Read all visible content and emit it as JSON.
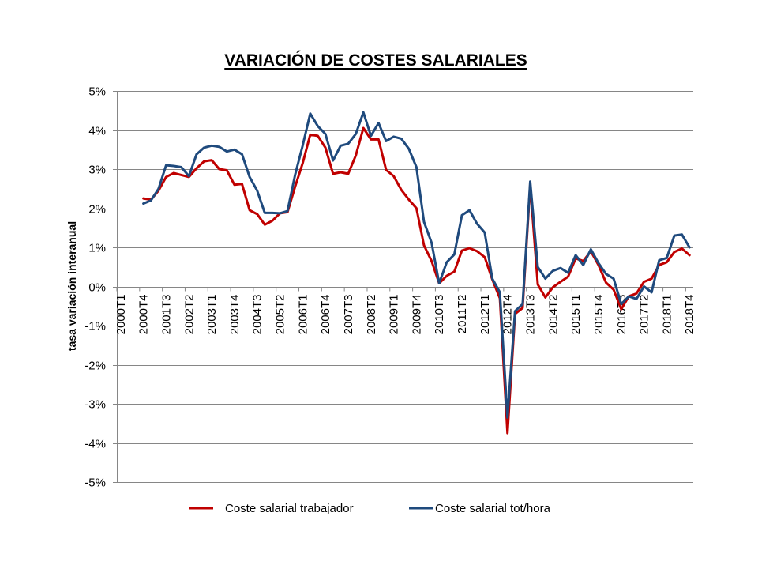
{
  "chart_data": {
    "type": "line",
    "title": "VARIACIÓN DE COSTES SALARIALES",
    "xlabel": "",
    "ylabel": "tasa variación interanual",
    "ylim": [
      -5,
      5
    ],
    "y_ticks": [
      5,
      4,
      3,
      2,
      1,
      0,
      -1,
      -2,
      -3,
      -4,
      -5
    ],
    "y_tick_labels": [
      "5%",
      "4%",
      "3%",
      "2%",
      "1%",
      "0%",
      "-1%",
      "-2%",
      "-3%",
      "-4%",
      "-5%"
    ],
    "x_tick_labels": [
      "2000T1",
      "2000T4",
      "2001T3",
      "2002T2",
      "2003T1",
      "2003T4",
      "2004T3",
      "2005T2",
      "2006T1",
      "2006T4",
      "2007T3",
      "2008T2",
      "2009T1",
      "2009T4",
      "2010T3",
      "2011T2",
      "2012T1",
      "2012T4",
      "2013T3",
      "2014T2",
      "2015T1",
      "2015T4",
      "2016T3",
      "2017T2",
      "2018T1",
      "2018T4"
    ],
    "grid": "horizontal",
    "legend": "bottom",
    "series": [
      {
        "name": "Coste salarial trabajador",
        "color": "#C00000",
        "values": [
          null,
          null,
          null,
          2.25,
          2.22,
          2.45,
          2.8,
          2.9,
          2.85,
          2.8,
          3.02,
          3.2,
          3.23,
          3.0,
          2.97,
          2.6,
          2.62,
          1.95,
          1.85,
          1.58,
          1.68,
          1.87,
          1.9,
          2.55,
          3.15,
          3.88,
          3.85,
          3.55,
          2.88,
          2.92,
          2.88,
          3.35,
          4.05,
          3.76,
          3.76,
          2.98,
          2.82,
          2.47,
          2.22,
          2.0,
          1.05,
          0.65,
          0.08,
          0.27,
          0.38,
          0.92,
          0.98,
          0.9,
          0.75,
          0.18,
          -0.3,
          -3.75,
          -0.7,
          -0.55,
          2.6,
          0.05,
          -0.28,
          -0.02,
          0.12,
          0.25,
          0.72,
          0.65,
          0.9,
          0.55,
          0.1,
          -0.08,
          -0.58,
          -0.25,
          -0.18,
          0.12,
          0.2,
          0.55,
          0.62,
          0.88,
          0.97,
          0.8
        ]
      },
      {
        "name": "Coste salarial tot/hora",
        "color": "#1F4A7D",
        "values": [
          null,
          null,
          null,
          2.12,
          2.2,
          2.5,
          3.1,
          3.08,
          3.05,
          2.82,
          3.38,
          3.55,
          3.6,
          3.57,
          3.45,
          3.5,
          3.38,
          2.8,
          2.45,
          1.88,
          1.88,
          1.87,
          1.93,
          2.85,
          3.6,
          4.42,
          4.1,
          3.9,
          3.22,
          3.6,
          3.65,
          3.9,
          4.45,
          3.85,
          4.18,
          3.72,
          3.83,
          3.78,
          3.52,
          3.05,
          1.65,
          1.12,
          0.08,
          0.62,
          0.82,
          1.82,
          1.95,
          1.6,
          1.38,
          0.2,
          -0.15,
          -3.35,
          -0.63,
          -0.45,
          2.68,
          0.5,
          0.2,
          0.4,
          0.47,
          0.35,
          0.8,
          0.55,
          0.95,
          0.6,
          0.32,
          0.2,
          -0.45,
          -0.25,
          -0.32,
          0.0,
          -0.15,
          0.67,
          0.73,
          1.3,
          1.33,
          1.0
        ]
      }
    ]
  }
}
